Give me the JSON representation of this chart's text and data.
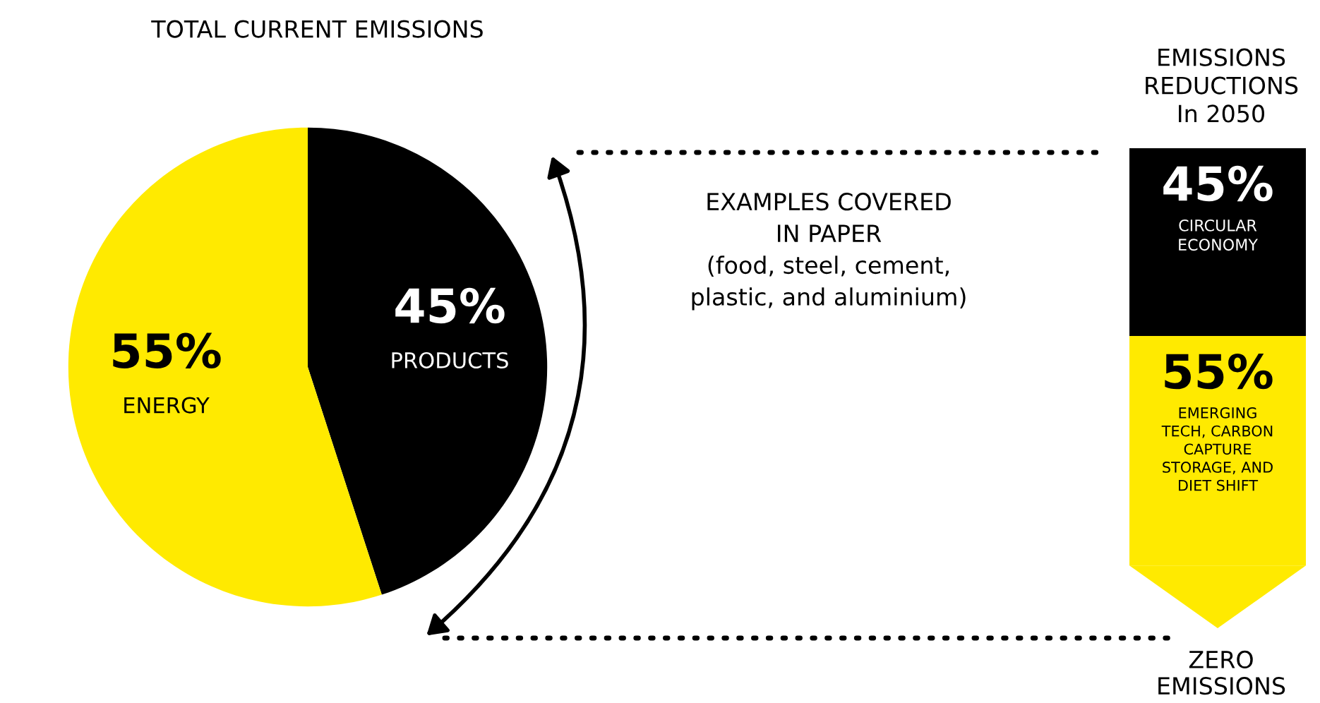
{
  "chart_data": [
    {
      "type": "pie",
      "title": "TOTAL CURRENT EMISSIONS",
      "categories": [
        "PRODUCTS",
        "ENERGY"
      ],
      "values": [
        45,
        55
      ],
      "colors": [
        "#000000",
        "#ffea00"
      ],
      "value_labels": [
        "45%",
        "55%"
      ],
      "annotations": [
        "EXAMPLES COVERED\nIN PAPER\n(food, steel, cement,\nplastic, and aluminium)"
      ],
      "legend": false
    },
    {
      "type": "bar",
      "title": "EMISSIONS\nREDUCTIONS\nIn 2050",
      "stacked": true,
      "categories": [
        null
      ],
      "series": [
        {
          "name": "EMERGING\nTECH, CARBON\nCAPTURE\nSTORAGE, AND\nDIET SHIFT",
          "color": "#ffea00",
          "values": [
            55
          ],
          "value_labels": [
            "55%"
          ]
        },
        {
          "name": "CIRCULAR\nECONOMY",
          "color": "#000000",
          "values": [
            45
          ],
          "value_labels": [
            "45%"
          ]
        }
      ],
      "annotations": [
        "ZERO\nEMISSIONS"
      ],
      "legend": false
    }
  ]
}
